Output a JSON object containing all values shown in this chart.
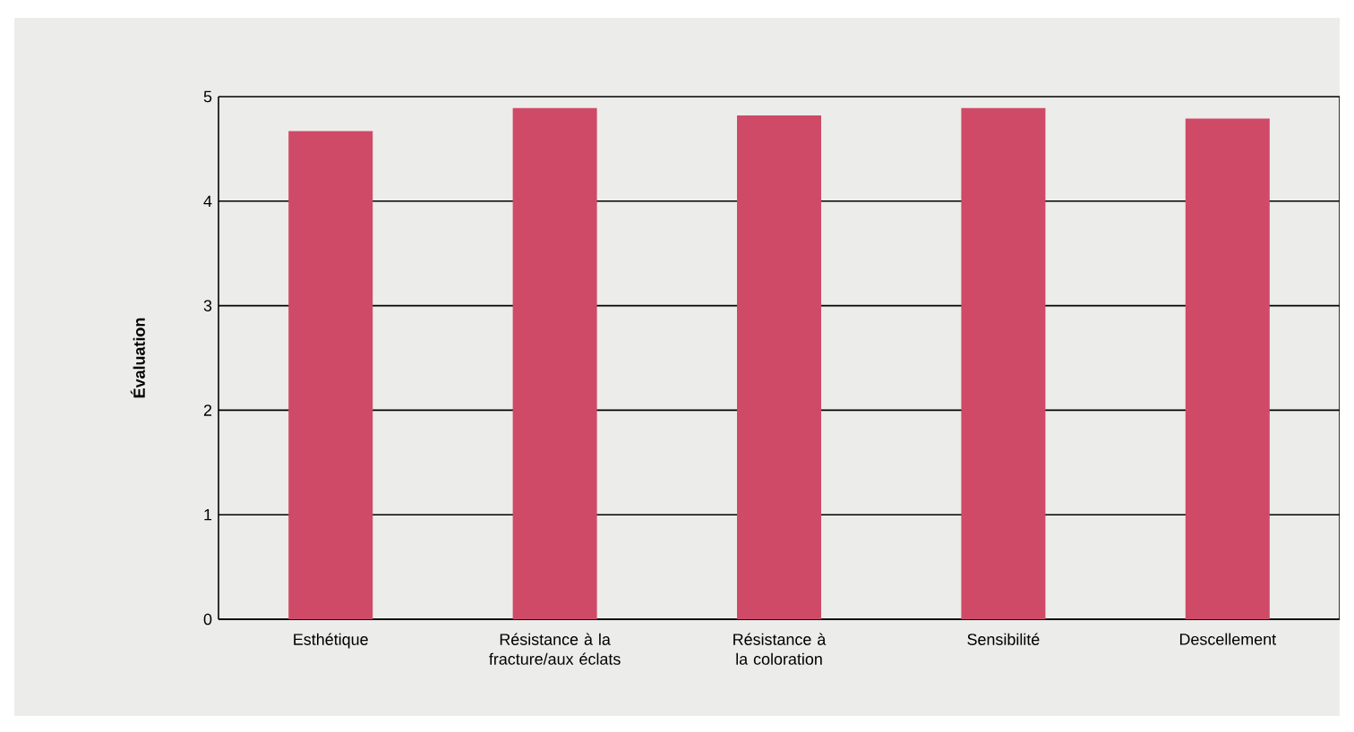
{
  "chart_data": {
    "type": "bar",
    "ylabel": "Évaluation",
    "categories": [
      "Esthétique",
      "Résistance à la fracture/aux éclats",
      "Résistance à la coloration",
      "Sensibilité",
      "Descellement"
    ],
    "values": [
      4.67,
      4.89,
      4.82,
      4.89,
      4.79
    ],
    "color": "#cf4a66",
    "ylim": [
      0,
      5
    ],
    "yticks": [
      0,
      1,
      2,
      3,
      4,
      5
    ],
    "grid": "y"
  }
}
